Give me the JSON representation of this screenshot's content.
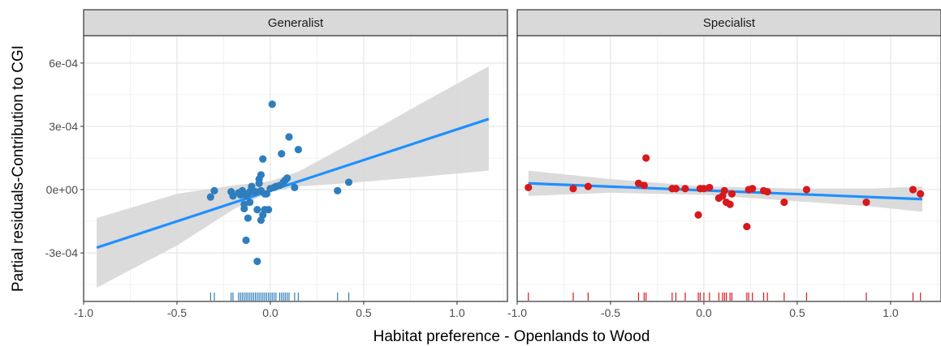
{
  "chart_data": {
    "type": "scatter",
    "facet_type": "facet_wrap",
    "xlabel": "Habitat preference - Openlands to Wood",
    "ylabel": "Partial residuals-Contribution to CGI",
    "xlim": [
      -1.0,
      1.27
    ],
    "ylim": [
      -0.00053,
      0.00073
    ],
    "x_ticks": [
      {
        "value": -1.0,
        "label": "-1.0"
      },
      {
        "value": -0.5,
        "label": "-0.5"
      },
      {
        "value": 0.0,
        "label": "0.0"
      },
      {
        "value": 0.5,
        "label": "0.5"
      },
      {
        "value": 1.0,
        "label": "1.0"
      }
    ],
    "y_ticks": [
      {
        "value": 0.0006,
        "label": "6e-04"
      },
      {
        "value": 0.0003,
        "label": "3e-04"
      },
      {
        "value": 0.0,
        "label": "0e+00"
      },
      {
        "value": -0.0003,
        "label": "-3e-04"
      }
    ],
    "grid": true,
    "rug": "bottom",
    "panels": [
      {
        "title": "Generalist",
        "color": "#2e7ebf",
        "line_color": "#1e90ff",
        "ribbon_color": "#d9d9d9",
        "points": [
          {
            "x": -0.32,
            "y": -3.5e-05
          },
          {
            "x": -0.3,
            "y": -5e-06
          },
          {
            "x": -0.21,
            "y": -1e-05
          },
          {
            "x": -0.2,
            "y": -3e-05
          },
          {
            "x": -0.17,
            "y": -1.5e-05
          },
          {
            "x": -0.16,
            "y": -2.5e-05
          },
          {
            "x": -0.15,
            "y": -5e-06
          },
          {
            "x": -0.14,
            "y": -7e-05
          },
          {
            "x": -0.14,
            "y": -9e-05
          },
          {
            "x": -0.13,
            "y": -3e-05
          },
          {
            "x": -0.13,
            "y": -0.00024
          },
          {
            "x": -0.12,
            "y": -0.000135
          },
          {
            "x": -0.12,
            "y": -2e-05
          },
          {
            "x": -0.11,
            "y": -6e-05
          },
          {
            "x": -0.11,
            "y": -1e-05
          },
          {
            "x": -0.1,
            "y": 1.5e-05
          },
          {
            "x": -0.09,
            "y": -1e-05
          },
          {
            "x": -0.08,
            "y": -1e-05
          },
          {
            "x": -0.07,
            "y": -9.5e-05
          },
          {
            "x": -0.07,
            "y": -0.00034
          },
          {
            "x": -0.06,
            "y": 3e-05
          },
          {
            "x": -0.06,
            "y": 5e-05
          },
          {
            "x": -0.05,
            "y": -5e-06
          },
          {
            "x": -0.05,
            "y": 7e-05
          },
          {
            "x": -0.05,
            "y": -0.000145
          },
          {
            "x": -0.04,
            "y": -0.00012
          },
          {
            "x": -0.04,
            "y": 0.000145
          },
          {
            "x": -0.03,
            "y": -9.5e-05
          },
          {
            "x": -0.03,
            "y": -2e-05
          },
          {
            "x": -0.02,
            "y": -2e-05
          },
          {
            "x": -0.01,
            "y": -9.5e-05
          },
          {
            "x": 0.0,
            "y": 5e-06
          },
          {
            "x": 0.01,
            "y": 0.000405
          },
          {
            "x": 0.02,
            "y": 1e-05
          },
          {
            "x": 0.03,
            "y": 1.5e-05
          },
          {
            "x": 0.05,
            "y": 2e-05
          },
          {
            "x": 0.06,
            "y": 0.00017
          },
          {
            "x": 0.07,
            "y": 3.5e-05
          },
          {
            "x": 0.08,
            "y": 4.5e-05
          },
          {
            "x": 0.09,
            "y": 5.5e-05
          },
          {
            "x": 0.1,
            "y": 0.00025
          },
          {
            "x": 0.13,
            "y": 1e-05
          },
          {
            "x": 0.15,
            "y": 0.00019
          },
          {
            "x": 0.36,
            "y": -5e-06
          },
          {
            "x": 0.42,
            "y": 3.5e-05
          }
        ],
        "fit": [
          {
            "x": -0.93,
            "y": -0.000275
          },
          {
            "x": 1.17,
            "y": 0.000335
          }
        ],
        "ci_upper": [
          {
            "x": -0.93,
            "y": -0.000135
          },
          {
            "x": -0.5,
            "y": -2e-05
          },
          {
            "x": -0.2,
            "y": 2e-05
          },
          {
            "x": 0.0,
            "y": 4e-05
          },
          {
            "x": 0.15,
            "y": 8.5e-05
          },
          {
            "x": 0.4,
            "y": 0.000205
          },
          {
            "x": 0.8,
            "y": 0.000405
          },
          {
            "x": 1.17,
            "y": 0.000585
          }
        ],
        "ci_lower": [
          {
            "x": -0.93,
            "y": -0.000465
          },
          {
            "x": -0.5,
            "y": -0.000265
          },
          {
            "x": -0.2,
            "y": -9.5e-05
          },
          {
            "x": 0.0,
            "y": -1e-05
          },
          {
            "x": 0.15,
            "y": 1.5e-05
          },
          {
            "x": 0.4,
            "y": 3e-05
          },
          {
            "x": 0.8,
            "y": 6e-05
          },
          {
            "x": 1.17,
            "y": 9e-05
          }
        ],
        "rug_x": [
          -0.32,
          -0.3,
          -0.21,
          -0.2,
          -0.17,
          -0.16,
          -0.15,
          -0.14,
          -0.13,
          -0.12,
          -0.11,
          -0.1,
          -0.09,
          -0.08,
          -0.07,
          -0.06,
          -0.05,
          -0.04,
          -0.03,
          -0.02,
          -0.01,
          0.0,
          0.01,
          0.02,
          0.03,
          0.05,
          0.06,
          0.07,
          0.08,
          0.09,
          0.1,
          0.13,
          0.15,
          0.36,
          0.42
        ]
      },
      {
        "title": "Specialist",
        "color": "#d7191c",
        "line_color": "#1e90ff",
        "ribbon_color": "#d9d9d9",
        "points": [
          {
            "x": -0.94,
            "y": 1e-05
          },
          {
            "x": -0.7,
            "y": 5e-06
          },
          {
            "x": -0.62,
            "y": 1.5e-05
          },
          {
            "x": -0.35,
            "y": 3e-05
          },
          {
            "x": -0.32,
            "y": 2e-05
          },
          {
            "x": -0.31,
            "y": 0.00015
          },
          {
            "x": -0.17,
            "y": 5e-06
          },
          {
            "x": -0.15,
            "y": 5e-06
          },
          {
            "x": -0.1,
            "y": 5e-06
          },
          {
            "x": -0.03,
            "y": -0.00012
          },
          {
            "x": -0.02,
            "y": 5e-06
          },
          {
            "x": 0.0,
            "y": 5e-06
          },
          {
            "x": 0.03,
            "y": 1e-05
          },
          {
            "x": 0.08,
            "y": -4e-05
          },
          {
            "x": 0.1,
            "y": -3e-05
          },
          {
            "x": 0.11,
            "y": -5e-06
          },
          {
            "x": 0.12,
            "y": -6e-05
          },
          {
            "x": 0.14,
            "y": -7e-05
          },
          {
            "x": 0.15,
            "y": -2e-05
          },
          {
            "x": 0.23,
            "y": -0.000175
          },
          {
            "x": 0.24,
            "y": 0.0
          },
          {
            "x": 0.26,
            "y": 5e-06
          },
          {
            "x": 0.32,
            "y": -5e-06
          },
          {
            "x": 0.34,
            "y": -1e-05
          },
          {
            "x": 0.43,
            "y": -6e-05
          },
          {
            "x": 0.55,
            "y": 0.0
          },
          {
            "x": 0.87,
            "y": -6e-05
          },
          {
            "x": 1.12,
            "y": 0.0
          },
          {
            "x": 1.16,
            "y": -2e-05
          }
        ],
        "fit": [
          {
            "x": -0.94,
            "y": 3e-05
          },
          {
            "x": 1.17,
            "y": -4.5e-05
          }
        ],
        "ci_upper": [
          {
            "x": -0.94,
            "y": 9e-05
          },
          {
            "x": -0.5,
            "y": 5e-05
          },
          {
            "x": 0.0,
            "y": 1.5e-05
          },
          {
            "x": 0.5,
            "y": 5e-06
          },
          {
            "x": 0.9,
            "y": 5e-06
          },
          {
            "x": 1.17,
            "y": 1.5e-05
          }
        ],
        "ci_lower": [
          {
            "x": -0.94,
            "y": -3e-05
          },
          {
            "x": -0.5,
            "y": -1.5e-05
          },
          {
            "x": 0.0,
            "y": -2.5e-05
          },
          {
            "x": 0.5,
            "y": -5.5e-05
          },
          {
            "x": 0.9,
            "y": -8e-05
          },
          {
            "x": 1.17,
            "y": -0.000105
          }
        ],
        "rug_x": [
          -0.94,
          -0.7,
          -0.62,
          -0.35,
          -0.32,
          -0.31,
          -0.17,
          -0.15,
          -0.1,
          -0.03,
          -0.02,
          0.0,
          0.03,
          0.08,
          0.1,
          0.11,
          0.12,
          0.14,
          0.15,
          0.23,
          0.24,
          0.26,
          0.32,
          0.34,
          0.43,
          0.55,
          0.87,
          1.12,
          1.16
        ]
      }
    ]
  }
}
